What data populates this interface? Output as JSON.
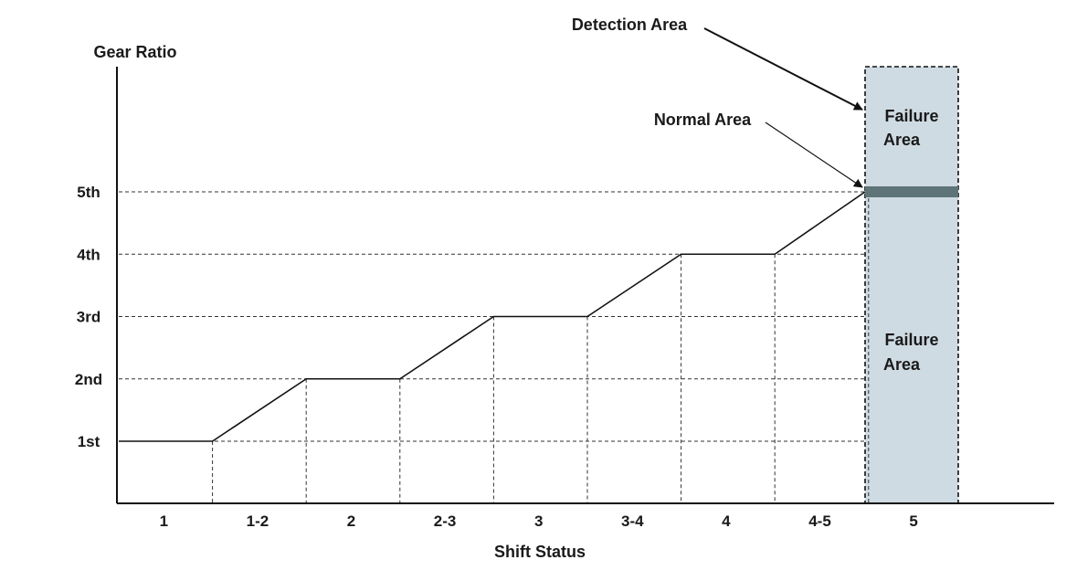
{
  "chart_data": {
    "type": "line",
    "ylabel": "Gear Ratio",
    "xlabel": "Shift Status",
    "y_ticks": [
      "1st",
      "2nd",
      "3rd",
      "4th",
      "5th"
    ],
    "categories": [
      "1",
      "1-2",
      "2",
      "2-3",
      "3",
      "3-4",
      "4",
      "4-5",
      "5"
    ],
    "series": [
      {
        "values": [
          1,
          1.5,
          2,
          2.5,
          3,
          3.5,
          4,
          4.5,
          5
        ]
      }
    ],
    "annotations": {
      "detection_area": "Detection Area",
      "normal_area": "Normal Area",
      "failure_area_upper": [
        "Failure",
        "Area"
      ],
      "failure_area_lower": [
        "Failure",
        "Area"
      ]
    },
    "grid": "dashed guide lines",
    "colors": {
      "line": "#111111",
      "detection_fill": "#cfdbe2",
      "normal_band": "#5f7479"
    }
  }
}
